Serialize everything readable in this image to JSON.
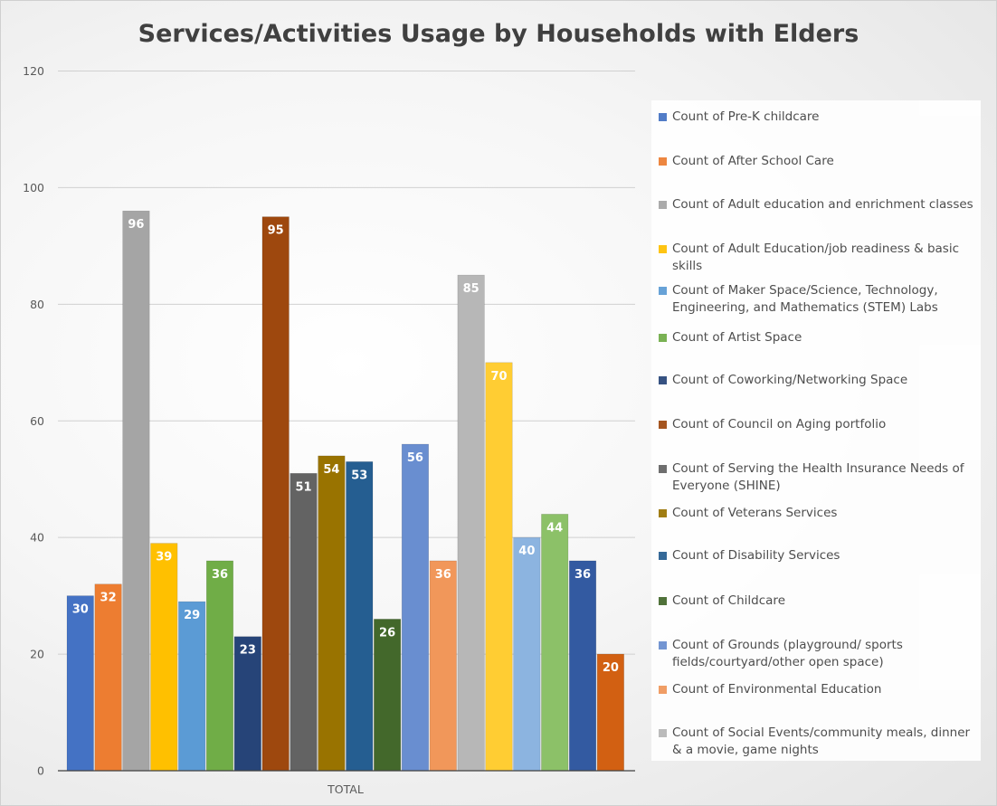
{
  "chart_data": {
    "type": "bar",
    "title": "Services/Activities Usage by Households with Elders",
    "categories": [
      "TOTAL"
    ],
    "ylim": [
      0,
      120
    ],
    "yticks": [
      0,
      20,
      40,
      60,
      80,
      100,
      120
    ],
    "grid": true,
    "legend_position": "right",
    "series": [
      {
        "name": "Count of Pre-K childcare",
        "values": [
          30
        ],
        "color": "#4472C4"
      },
      {
        "name": "Count of After School Care",
        "values": [
          32
        ],
        "color": "#ED7D31"
      },
      {
        "name": "Count of Adult education and enrichment classes",
        "values": [
          96
        ],
        "color": "#A5A5A5"
      },
      {
        "name": "Count of Adult Education/job readiness & basic skills",
        "values": [
          39
        ],
        "color": "#FFC000"
      },
      {
        "name": "Count of Maker Space/Science, Technology, Engineering, and Mathematics (STEM) Labs",
        "values": [
          29
        ],
        "color": "#5B9BD5"
      },
      {
        "name": "Count of Artist Space",
        "values": [
          36
        ],
        "color": "#70AD47"
      },
      {
        "name": "Count of Coworking/Networking Space",
        "values": [
          23
        ],
        "color": "#264478"
      },
      {
        "name": "Count of Council on Aging portfolio",
        "values": [
          95
        ],
        "color": "#9E480E"
      },
      {
        "name": "Count of Serving the Health Insurance Needs of Everyone (SHINE)",
        "values": [
          51
        ],
        "color": "#636363"
      },
      {
        "name": "Count of Veterans Services",
        "values": [
          54
        ],
        "color": "#997300"
      },
      {
        "name": "Count of Disability Services",
        "values": [
          53
        ],
        "color": "#255E91"
      },
      {
        "name": "Count of Childcare",
        "values": [
          26
        ],
        "color": "#43682B"
      },
      {
        "name": "Count of Grounds (playground/ sports fields/courtyard/other open space)",
        "values": [
          56
        ],
        "color": "#698ED0"
      },
      {
        "name": "Count of Environmental Education",
        "values": [
          36
        ],
        "color": "#F1975A"
      },
      {
        "name": "Count of Social Events/community meals, dinner & a movie, game nights",
        "values": [
          85
        ],
        "color": "#B7B7B7"
      },
      {
        "name": "",
        "values": [
          70
        ],
        "color": "#FFCD33"
      },
      {
        "name": "",
        "values": [
          40
        ],
        "color": "#8CB4E0"
      },
      {
        "name": "",
        "values": [
          44
        ],
        "color": "#8CC168"
      },
      {
        "name": "",
        "values": [
          36
        ],
        "color": "#335AA1"
      },
      {
        "name": "",
        "values": [
          20
        ],
        "color": "#D26012"
      }
    ]
  }
}
